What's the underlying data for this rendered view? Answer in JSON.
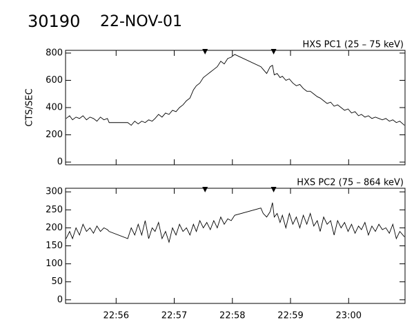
{
  "header": {
    "id": "30190",
    "date": "22-NOV-01"
  },
  "chart_data": [
    {
      "type": "line",
      "title": "HXS PC1 (25 – 75 keV)",
      "y_label": "CTS/SEC",
      "color": "#000000",
      "xlim": [
        1375.13,
        1380.97
      ],
      "xticks": [
        1376,
        1377,
        1378,
        1379,
        1380
      ],
      "ylim": [
        -20,
        820
      ],
      "yticks": [
        0,
        200,
        400,
        600,
        800
      ],
      "markers": [
        1377.53,
        1378.71
      ],
      "x": [
        1375.14,
        1375.2,
        1375.25,
        1375.31,
        1375.37,
        1375.43,
        1375.49,
        1375.55,
        1375.61,
        1375.67,
        1375.73,
        1375.79,
        1375.85,
        1375.88,
        1376.2,
        1376.26,
        1376.32,
        1376.38,
        1376.44,
        1376.5,
        1376.56,
        1376.62,
        1376.67,
        1376.73,
        1376.79,
        1376.85,
        1376.91,
        1376.97,
        1377.03,
        1377.09,
        1377.15,
        1377.21,
        1377.27,
        1377.33,
        1377.38,
        1377.44,
        1377.5,
        1377.56,
        1377.62,
        1377.68,
        1377.74,
        1377.8,
        1377.86,
        1377.92,
        1377.98,
        1378.04,
        1378.49,
        1378.53,
        1378.59,
        1378.65,
        1378.69,
        1378.72,
        1378.77,
        1378.82,
        1378.86,
        1378.92,
        1378.98,
        1379.04,
        1379.1,
        1379.16,
        1379.22,
        1379.28,
        1379.34,
        1379.4,
        1379.46,
        1379.51,
        1379.57,
        1379.63,
        1379.69,
        1379.75,
        1379.81,
        1379.87,
        1379.93,
        1379.99,
        1380.05,
        1380.11,
        1380.17,
        1380.22,
        1380.28,
        1380.34,
        1380.4,
        1380.46,
        1380.52,
        1380.58,
        1380.64,
        1380.7,
        1380.76,
        1380.82,
        1380.88,
        1380.96
      ],
      "values": [
        320,
        340,
        310,
        330,
        320,
        340,
        310,
        330,
        320,
        300,
        330,
        310,
        320,
        290,
        290,
        270,
        300,
        280,
        300,
        290,
        310,
        300,
        320,
        350,
        330,
        360,
        350,
        380,
        370,
        400,
        420,
        450,
        470,
        530,
        560,
        580,
        620,
        640,
        660,
        680,
        700,
        740,
        720,
        760,
        770,
        790,
        700,
        680,
        650,
        700,
        710,
        640,
        650,
        620,
        630,
        600,
        610,
        580,
        560,
        570,
        540,
        520,
        520,
        500,
        480,
        470,
        450,
        430,
        440,
        410,
        420,
        400,
        380,
        390,
        360,
        370,
        340,
        350,
        330,
        340,
        320,
        330,
        320,
        310,
        320,
        300,
        310,
        290,
        300,
        270
      ]
    },
    {
      "type": "line",
      "title": "HXS PC2 (75 – 864 keV)",
      "color": "#000000",
      "xlim": [
        1375.13,
        1380.97
      ],
      "xticks": [
        {
          "value": 1376,
          "label": "22:56"
        },
        {
          "value": 1377,
          "label": "22:57"
        },
        {
          "value": 1378,
          "label": "22:58"
        },
        {
          "value": 1379,
          "label": "22:59"
        },
        {
          "value": 1380,
          "label": "23:00"
        }
      ],
      "ylim": [
        -10,
        310
      ],
      "yticks": [
        0,
        50,
        100,
        150,
        200,
        250,
        300
      ],
      "markers": [
        1377.53,
        1378.71
      ],
      "x": [
        1375.14,
        1375.2,
        1375.25,
        1375.31,
        1375.37,
        1375.43,
        1375.49,
        1375.55,
        1375.61,
        1375.67,
        1375.73,
        1375.79,
        1375.85,
        1375.88,
        1376.2,
        1376.26,
        1376.32,
        1376.38,
        1376.44,
        1376.5,
        1376.56,
        1376.62,
        1376.67,
        1376.73,
        1376.79,
        1376.85,
        1376.91,
        1376.97,
        1377.03,
        1377.09,
        1377.15,
        1377.21,
        1377.27,
        1377.33,
        1377.38,
        1377.44,
        1377.5,
        1377.56,
        1377.62,
        1377.68,
        1377.74,
        1377.8,
        1377.86,
        1377.92,
        1377.98,
        1378.04,
        1378.49,
        1378.53,
        1378.59,
        1378.65,
        1378.69,
        1378.72,
        1378.77,
        1378.82,
        1378.86,
        1378.92,
        1378.98,
        1379.04,
        1379.1,
        1379.16,
        1379.22,
        1379.28,
        1379.34,
        1379.4,
        1379.46,
        1379.51,
        1379.57,
        1379.63,
        1379.69,
        1379.75,
        1379.81,
        1379.87,
        1379.93,
        1379.99,
        1380.05,
        1380.11,
        1380.17,
        1380.22,
        1380.28,
        1380.34,
        1380.4,
        1380.46,
        1380.52,
        1380.58,
        1380.64,
        1380.7,
        1380.76,
        1380.82,
        1380.88,
        1380.96
      ],
      "values": [
        170,
        190,
        170,
        200,
        180,
        210,
        190,
        200,
        185,
        205,
        190,
        200,
        195,
        190,
        170,
        200,
        180,
        210,
        180,
        220,
        170,
        200,
        190,
        215,
        170,
        190,
        160,
        200,
        180,
        210,
        190,
        200,
        180,
        210,
        190,
        220,
        200,
        215,
        195,
        220,
        200,
        230,
        210,
        225,
        220,
        235,
        255,
        240,
        230,
        245,
        270,
        230,
        240,
        215,
        235,
        200,
        240,
        210,
        230,
        200,
        235,
        210,
        240,
        205,
        220,
        190,
        230,
        210,
        220,
        180,
        220,
        200,
        215,
        190,
        210,
        185,
        205,
        195,
        215,
        180,
        205,
        190,
        210,
        195,
        200,
        185,
        210,
        170,
        190,
        175
      ]
    }
  ]
}
